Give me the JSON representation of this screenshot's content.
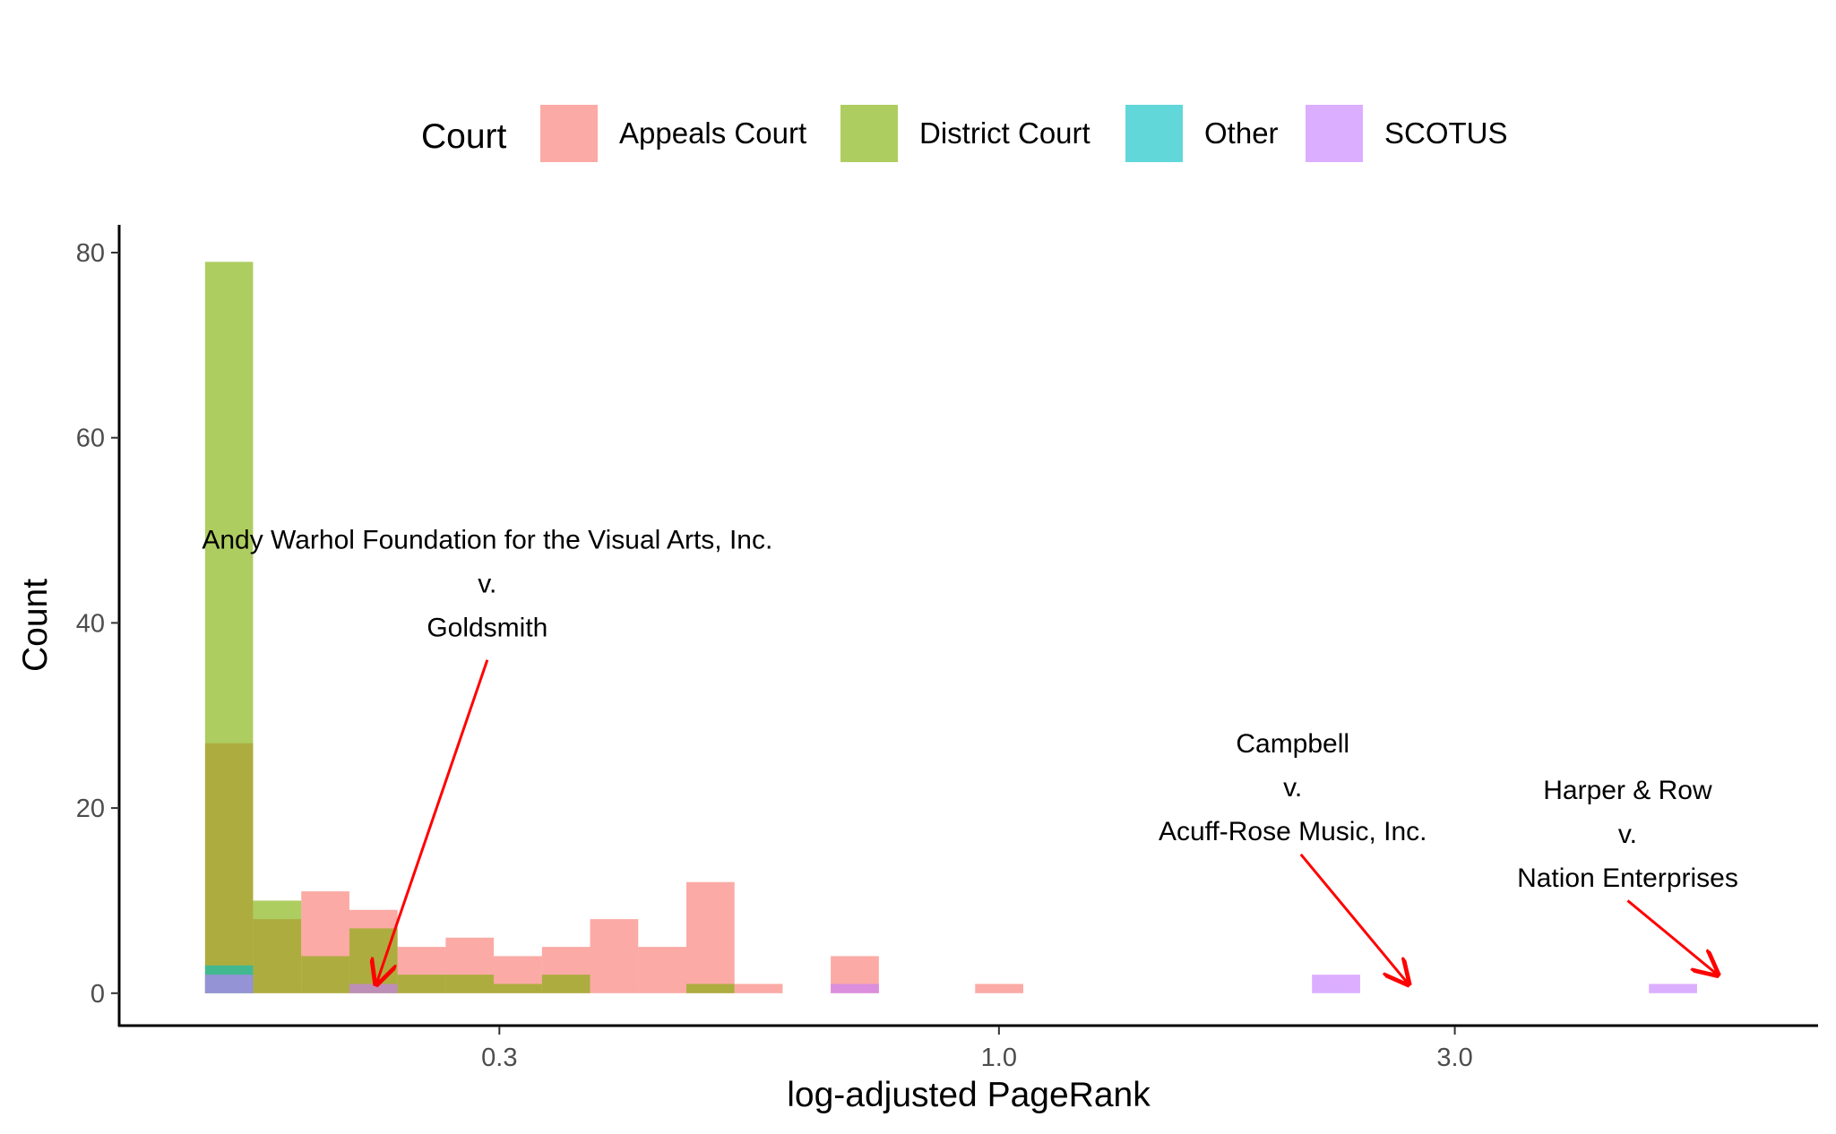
{
  "chart_data": {
    "type": "bar",
    "subtype": "overlapping-histogram",
    "xlabel": "log-adjusted PageRank",
    "ylabel": "Count",
    "x_scale": "log",
    "x_ticks": [
      {
        "value": 0.3,
        "label": "0.3"
      },
      {
        "value": 1.0,
        "label": "1.0"
      },
      {
        "value": 3.0,
        "label": "3.0"
      }
    ],
    "xlim": [
      0.12,
      7.2
    ],
    "y_ticks": [
      {
        "value": 0,
        "label": "0"
      },
      {
        "value": 20,
        "label": "20"
      },
      {
        "value": 40,
        "label": "40"
      },
      {
        "value": 60,
        "label": "60"
      },
      {
        "value": 80,
        "label": "80"
      }
    ],
    "ylim": [
      -3.6,
      83
    ],
    "grid": false,
    "bin_edges": [
      0.1476,
      0.1657,
      0.1861,
      0.209,
      0.2347,
      0.2636,
      0.296,
      0.3324,
      0.3733,
      0.4192,
      0.4708,
      0.5287,
      0.5937,
      0.6667,
      0.7487,
      0.8408,
      0.9442,
      1.0603,
      1.1907,
      1.3371,
      1.5016,
      1.6862,
      1.8936,
      2.1265,
      2.388,
      2.6817,
      3.0115,
      3.3819,
      3.7978,
      4.2649,
      4.7894,
      5.3784,
      6.0399
    ],
    "legend": {
      "title": "Court",
      "placement": "top",
      "entries": [
        {
          "label": "Appeals Court",
          "color": "#F8766D"
        },
        {
          "label": "District Court",
          "color": "#7CAE00"
        },
        {
          "label": "Other",
          "color": "#00BFC4"
        },
        {
          "label": "SCOTUS",
          "color": "#C77CFF"
        }
      ]
    },
    "series": [
      {
        "name": "Appeals Court",
        "color": "#F8766D",
        "values": [
          27,
          8,
          11,
          9,
          5,
          6,
          4,
          5,
          8,
          5,
          12,
          1,
          0,
          4,
          0,
          0,
          1,
          0,
          0,
          0,
          0,
          0,
          0,
          0,
          0,
          0,
          0,
          0,
          0,
          0,
          0,
          0
        ]
      },
      {
        "name": "District Court",
        "color": "#7CAE00",
        "values": [
          79,
          10,
          4,
          7,
          2,
          2,
          1,
          2,
          0,
          0,
          1,
          0,
          0,
          0,
          0,
          0,
          0,
          0,
          0,
          0,
          0,
          0,
          0,
          0,
          0,
          0,
          0,
          0,
          0,
          0,
          0,
          0
        ]
      },
      {
        "name": "Other",
        "color": "#00BFC4",
        "values": [
          3,
          0,
          0,
          0,
          0,
          0,
          0,
          0,
          0,
          0,
          0,
          0,
          0,
          0,
          0,
          0,
          0,
          0,
          0,
          0,
          0,
          0,
          0,
          0,
          0,
          0,
          0,
          0,
          0,
          0,
          0,
          0
        ]
      },
      {
        "name": "SCOTUS",
        "color": "#C77CFF",
        "values": [
          2,
          0,
          0,
          1,
          0,
          0,
          0,
          0,
          0,
          0,
          0,
          0,
          0,
          1,
          0,
          0,
          0,
          0,
          0,
          0,
          0,
          0,
          0,
          2,
          0,
          0,
          0,
          0,
          0,
          0,
          1,
          0
        ]
      }
    ],
    "annotations": [
      {
        "lines": [
          "Andy Warhol Foundation for the Visual Arts, Inc.",
          "v.",
          "Goldsmith"
        ],
        "text_x": 0.2914,
        "text_y": 48,
        "arrow_from": [
          0.2914,
          36
        ],
        "arrow_to": [
          0.223,
          1
        ],
        "arrow_color": "#FF0000"
      },
      {
        "lines": [
          "Campbell",
          "v.",
          "Acuff-Rose Music, Inc."
        ],
        "text_x": 2.03,
        "text_y": 26,
        "arrow_from": [
          2.07,
          15
        ],
        "arrow_to": [
          2.6817,
          1
        ],
        "arrow_color": "#FF0000"
      },
      {
        "lines": [
          "Harper & Row",
          "v.",
          "Nation Enterprises"
        ],
        "text_x": 4.55,
        "text_y": 21,
        "arrow_from": [
          4.55,
          10
        ],
        "arrow_to": [
          5.65,
          2
        ],
        "arrow_color": "#FF0000"
      }
    ]
  }
}
